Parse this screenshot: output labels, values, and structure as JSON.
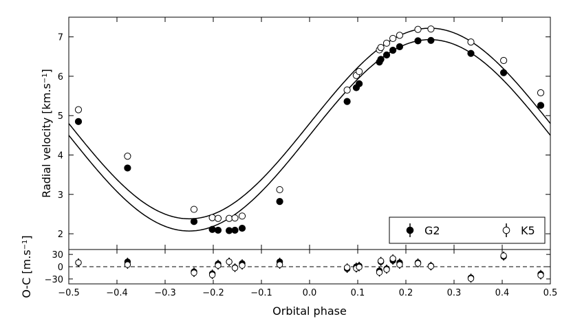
{
  "chart_data": [
    {
      "type": "scatter",
      "title": "",
      "xlabel": "",
      "ylabel": "Radial velocity [km.s",
      "ylabel_sup": "−1",
      "ylabel_end": "]",
      "xlim": [
        -0.5,
        0.5
      ],
      "ylim": [
        1.6,
        7.5
      ],
      "yticks": [
        2,
        3,
        4,
        5,
        6,
        7
      ],
      "ytick_labels": [
        "2",
        "3",
        "4",
        "5",
        "6",
        "7"
      ],
      "legend": {
        "position": "lower-right",
        "entries": [
          "G2",
          "K5"
        ]
      },
      "series": [
        {
          "name": "G2",
          "marker": "filled-circle",
          "color": "#000000",
          "x": [
            -0.48,
            -0.378,
            -0.24,
            -0.202,
            -0.19,
            -0.167,
            -0.155,
            -0.14,
            -0.062,
            0.078,
            0.097,
            0.103,
            0.145,
            0.148,
            0.16,
            0.173,
            0.187,
            0.225,
            0.252,
            0.335,
            0.403,
            0.48
          ],
          "y": [
            4.85,
            3.67,
            2.31,
            2.11,
            2.09,
            2.08,
            2.09,
            2.14,
            2.82,
            5.36,
            5.71,
            5.81,
            6.36,
            6.43,
            6.54,
            6.66,
            6.75,
            6.9,
            6.91,
            6.58,
            6.09,
            5.26
          ]
        },
        {
          "name": "K5",
          "marker": "open-circle",
          "color": "#000000",
          "x": [
            -0.48,
            -0.378,
            -0.24,
            -0.202,
            -0.19,
            -0.167,
            -0.155,
            -0.14,
            -0.062,
            0.078,
            0.097,
            0.103,
            0.145,
            0.148,
            0.16,
            0.173,
            0.187,
            0.225,
            0.252,
            0.335,
            0.403,
            0.48
          ],
          "y": [
            5.15,
            3.97,
            2.62,
            2.41,
            2.39,
            2.39,
            2.4,
            2.45,
            3.12,
            5.65,
            6.02,
            6.12,
            6.67,
            6.73,
            6.84,
            6.96,
            7.04,
            7.19,
            7.2,
            6.87,
            6.4,
            5.58
          ]
        }
      ],
      "fit_curves": [
        {
          "series": "G2",
          "gamma": 4.5,
          "K": 2.43,
          "phase_of_max": 0.25
        },
        {
          "series": "K5",
          "gamma": 4.8,
          "K": 2.42,
          "phase_of_max": 0.25
        }
      ]
    },
    {
      "type": "scatter",
      "title": "",
      "xlabel": "Orbital phase",
      "ylabel": "O-C [m.s",
      "ylabel_sup": "−1",
      "ylabel_end": "]",
      "xlim": [
        -0.5,
        0.5
      ],
      "ylim": [
        -42,
        42
      ],
      "xticks": [
        -0.5,
        -0.4,
        -0.3,
        -0.2,
        -0.1,
        0.0,
        0.1,
        0.2,
        0.3,
        0.4,
        0.5
      ],
      "xtick_labels": [
        "−0.5",
        "−0.4",
        "−0.3",
        "−0.2",
        "−0.1",
        "0.0",
        "0.1",
        "0.2",
        "0.3",
        "0.4",
        "0.5"
      ],
      "yticks": [
        30,
        0,
        -30
      ],
      "ytick_labels": [
        "30",
        "0",
        "−30"
      ],
      "zero_line": "dashed",
      "series": [
        {
          "name": "G2",
          "marker": "filled-circle",
          "color": "#000000",
          "x": [
            -0.48,
            -0.378,
            -0.24,
            -0.202,
            -0.19,
            -0.167,
            -0.155,
            -0.14,
            -0.062,
            0.078,
            0.097,
            0.103,
            0.145,
            0.148,
            0.16,
            0.173,
            0.187,
            0.225,
            0.252,
            0.335,
            0.403,
            0.48
          ],
          "y": [
            10,
            12,
            -12,
            -17,
            7,
            12,
            -2,
            8,
            12,
            -5,
            0,
            2,
            -10,
            12,
            -5,
            15,
            10,
            10,
            2,
            -27,
            25,
            -18
          ],
          "yerr": 10
        },
        {
          "name": "K5",
          "marker": "open-circle",
          "color": "#000000",
          "x": [
            -0.48,
            -0.378,
            -0.24,
            -0.202,
            -0.19,
            -0.167,
            -0.155,
            -0.14,
            -0.062,
            0.078,
            0.097,
            0.103,
            0.145,
            0.148,
            0.16,
            0.173,
            0.187,
            0.225,
            0.252,
            0.335,
            0.403,
            0.48
          ],
          "y": [
            10,
            5,
            -15,
            -20,
            3,
            12,
            -3,
            3,
            5,
            -2,
            -4,
            -1,
            -14,
            14,
            -7,
            20,
            5,
            8,
            1,
            -29,
            27,
            -21
          ],
          "yerr": 10
        }
      ]
    }
  ]
}
